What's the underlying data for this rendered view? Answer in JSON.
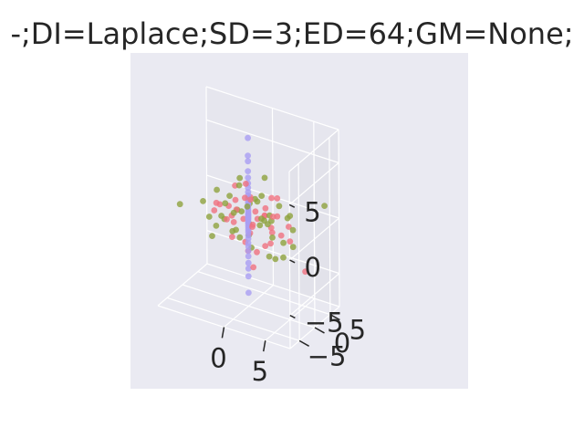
{
  "chart_data": {
    "type": "scatter",
    "projection": "3d",
    "title": "-;DI=Laplace;SD=3;ED=64;GM=None;",
    "xlabel": "",
    "ylabel": "",
    "zlabel": "",
    "xlim": [
      -8,
      8
    ],
    "ylim": [
      -8,
      8
    ],
    "zlim": [
      -8,
      8
    ],
    "x_ticks": [
      {
        "value": 0,
        "label": "0"
      },
      {
        "value": 5,
        "label": "5"
      }
    ],
    "y_ticks": [
      {
        "value": -5,
        "label": "−5"
      },
      {
        "value": 0,
        "label": "0"
      },
      {
        "value": 5,
        "label": "5"
      }
    ],
    "z_ticks": [
      {
        "value": -5,
        "label": "−5"
      },
      {
        "value": 0,
        "label": "0"
      },
      {
        "value": 5,
        "label": "5"
      }
    ],
    "grid": true,
    "background_color": "#eaeaf2",
    "pane_color": "#e6e6ee",
    "series": [
      {
        "color": "#f0727f",
        "points": [
          [
            -1.2,
            -2.1,
            0.4
          ],
          [
            0.6,
            1.4,
            -0.3
          ],
          [
            2.3,
            -0.8,
            0.9
          ],
          [
            -0.5,
            0.3,
            1.6
          ],
          [
            1.8,
            2.6,
            -1.1
          ],
          [
            -2.7,
            0.9,
            0.2
          ],
          [
            0.2,
            -1.5,
            -1.8
          ],
          [
            3.1,
            1.1,
            0.6
          ],
          [
            -1.6,
            -0.4,
            -0.7
          ],
          [
            0.9,
            3.2,
            0.3
          ],
          [
            -3.4,
            -1.2,
            0.8
          ],
          [
            1.3,
            -2.9,
            -0.4
          ],
          [
            4.6,
            0.8,
            0.1
          ],
          [
            -0.3,
            2.1,
            -1.4
          ],
          [
            2.7,
            -1.9,
            1.3
          ],
          [
            -2.1,
            1.8,
            -0.2
          ],
          [
            0.5,
            -0.6,
            2.1
          ],
          [
            1.9,
            0.4,
            -2.2
          ],
          [
            -4.3,
            0.5,
            -0.5
          ],
          [
            3.6,
            -2.4,
            -0.9
          ],
          [
            0.8,
            0.2,
            0.7
          ],
          [
            -1.1,
            3.7,
            0.5
          ],
          [
            2.2,
            1.7,
            1.9
          ],
          [
            -0.8,
            -3.1,
            -1.2
          ],
          [
            5.2,
            -0.4,
            -0.8
          ],
          [
            1.4,
            4.3,
            -0.6
          ],
          [
            -2.6,
            -2.2,
            1.1
          ],
          [
            0.1,
            1.2,
            -0.9
          ],
          [
            3.3,
            0.6,
            2.4
          ],
          [
            -1.8,
            0.7,
            1.0
          ],
          [
            0.4,
            -2.6,
            0.6
          ],
          [
            2.9,
            2.9,
            -1.6
          ],
          [
            -3.2,
            1.6,
            -1.3
          ],
          [
            1.1,
            -0.2,
            -2.8
          ],
          [
            -0.6,
            0.9,
            2.7
          ],
          [
            4.1,
            -3.2,
            0.4
          ],
          [
            6.1,
            2.1,
            -3.9
          ],
          [
            1.7,
            -4.6,
            -1.5
          ],
          [
            0.3,
            0.8,
            -4.6
          ],
          [
            -0.9,
            -1.8,
            3.1
          ]
        ]
      },
      {
        "color": "#8fa33d",
        "points": [
          [
            -4.2,
            -1.4,
            -0.6
          ],
          [
            1.5,
            -3.8,
            -0.3
          ],
          [
            -2.5,
            0.7,
            1.2
          ],
          [
            0.7,
            2.4,
            -0.5
          ],
          [
            3.4,
            -1.6,
            0.9
          ],
          [
            -1.3,
            -0.5,
            -1.3
          ],
          [
            2.1,
            1.3,
            0.4
          ],
          [
            -3.6,
            2.2,
            -0.1
          ],
          [
            0.6,
            -1.1,
            1.7
          ],
          [
            4.4,
            2.7,
            -0.7
          ],
          [
            -0.4,
            3.3,
            0.8
          ],
          [
            1.2,
            -2.2,
            -1.9
          ],
          [
            -2.2,
            -2.8,
            0.3
          ],
          [
            2.8,
            0.3,
            -1.2
          ],
          [
            -1.6,
            1.4,
            2.2
          ],
          [
            0.2,
            -0.3,
            -0.4
          ],
          [
            5.1,
            -0.9,
            1.4
          ],
          [
            -5.2,
            -0.7,
            0.4
          ],
          [
            3.7,
            3.6,
            0.2
          ],
          [
            -0.9,
            -2.7,
            -0.8
          ],
          [
            1.9,
            -0.7,
            2.6
          ],
          [
            -2.9,
            3.1,
            -1.0
          ],
          [
            0.4,
            1.9,
            1.1
          ],
          [
            2.5,
            -2.9,
            0.6
          ],
          [
            -1.1,
            0.2,
            -2.1
          ],
          [
            4.9,
            1.4,
            -1.8
          ],
          [
            -3.9,
            0.3,
            1.5
          ],
          [
            1.6,
            0.9,
            -0.1
          ],
          [
            -0.2,
            -1.6,
            0.9
          ],
          [
            3.0,
            2.0,
            1.3
          ],
          [
            -2.4,
            -1.3,
            -0.4
          ],
          [
            0.9,
            3.9,
            -1.3
          ],
          [
            7.3,
            5.2,
            1.6
          ],
          [
            -6.8,
            -3.9,
            0.5
          ],
          [
            5.8,
            -4.2,
            -1.2
          ],
          [
            -1.9,
            4.8,
            -0.6
          ],
          [
            2.3,
            0.6,
            -3.1
          ],
          [
            -0.7,
            -0.8,
            3.6
          ],
          [
            3.9,
            -1.7,
            -2.4
          ],
          [
            -3.1,
            -3.4,
            -1.6
          ],
          [
            1.0,
            2.7,
            3.2
          ],
          [
            -4.6,
            1.9,
            -2.3
          ],
          [
            0.3,
            -4.3,
            1.8
          ],
          [
            2.6,
            4.4,
            -2.7
          ]
        ]
      },
      {
        "color": "#a99ef2",
        "points": [
          [
            0,
            0,
            7.2
          ],
          [
            0,
            0,
            5.6
          ],
          [
            0,
            0,
            5.1
          ],
          [
            0,
            0,
            4.2
          ],
          [
            0,
            0,
            3.6
          ],
          [
            0,
            0,
            3.1
          ],
          [
            0,
            0,
            2.7
          ],
          [
            0,
            0,
            2.3
          ],
          [
            0,
            0,
            2.0
          ],
          [
            0,
            0,
            1.7
          ],
          [
            0,
            0,
            1.4
          ],
          [
            0,
            0,
            1.2
          ],
          [
            0,
            0,
            1.0
          ],
          [
            0,
            0,
            0.8
          ],
          [
            0,
            0,
            0.6
          ],
          [
            0,
            0,
            0.4
          ],
          [
            0,
            0,
            0.3
          ],
          [
            0,
            0,
            0.2
          ],
          [
            0,
            0,
            0.1
          ],
          [
            0,
            0,
            0.0
          ],
          [
            0,
            0,
            -0.1
          ],
          [
            0,
            0,
            -0.2
          ],
          [
            0,
            0,
            -0.4
          ],
          [
            0,
            0,
            -0.5
          ],
          [
            0,
            0,
            -0.7
          ],
          [
            0,
            0,
            -0.9
          ],
          [
            0,
            0,
            -1.1
          ],
          [
            0,
            0,
            -1.3
          ],
          [
            0,
            0,
            -1.6
          ],
          [
            0,
            0,
            -1.9
          ],
          [
            0,
            0,
            -2.3
          ],
          [
            0,
            0,
            -2.6
          ],
          [
            0,
            0,
            -3.0
          ],
          [
            0,
            0,
            -3.5
          ],
          [
            0,
            0,
            -4.1
          ],
          [
            0,
            0,
            -4.6
          ],
          [
            0,
            0,
            -5.3
          ],
          [
            0,
            0,
            -6.8
          ]
        ]
      }
    ]
  }
}
